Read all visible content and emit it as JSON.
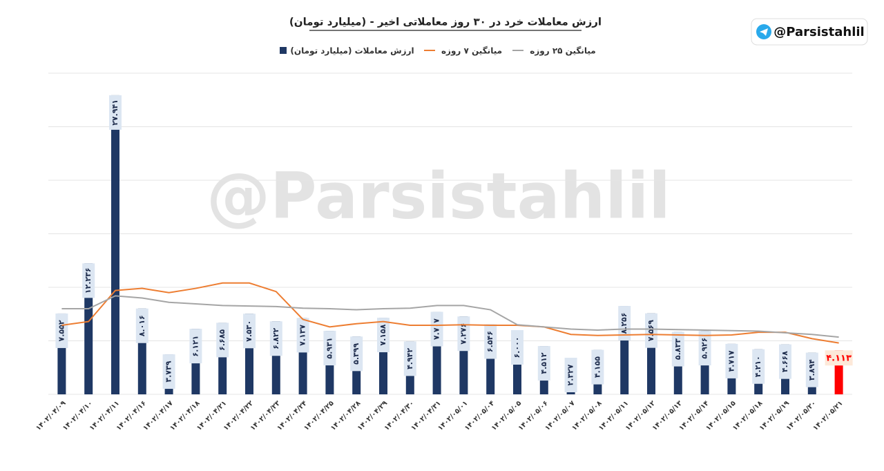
{
  "chart_data": {
    "type": "bar",
    "title": "ارزش معاملات خرد در ۳۰ روز معاملاتی اخیر - (میلیارد تومان)",
    "categories": [
      "۱۴۰۲/۰۴/۰۹",
      "۱۴۰۲/۰۴/۱۰",
      "۱۴۰۲/۰۴/۱۱",
      "۱۴۰۲/۰۴/۱۶",
      "۱۴۰۲/۰۴/۱۷",
      "۱۴۰۲/۰۴/۱۸",
      "۱۴۰۲/۰۴/۲۱",
      "۱۴۰۲/۰۴/۲۲",
      "۱۴۰۲/۰۴/۲۳",
      "۱۴۰۲/۰۴/۲۴",
      "۱۴۰۲/۰۴/۲۵",
      "۱۴۰۲/۰۴/۲۸",
      "۱۴۰۲/۰۴/۲۹",
      "۱۴۰۲/۰۴/۳۰",
      "۱۴۰۲/۰۴/۳۱",
      "۱۴۰۲/۰۵/۰۱",
      "۱۴۰۲/۰۵/۰۴",
      "۱۴۰۲/۰۵/۰۵",
      "۱۴۰۲/۰۵/۰۶",
      "۱۴۰۲/۰۵/۰۷",
      "۱۴۰۲/۰۵/۰۸",
      "۱۴۰۲/۰۵/۱۱",
      "۱۴۰۲/۰۵/۱۲",
      "۱۴۰۲/۰۵/۱۳",
      "۱۴۰۲/۰۵/۱۴",
      "۱۴۰۲/۰۵/۱۵",
      "۱۴۰۲/۰۵/۱۸",
      "۱۴۰۲/۰۵/۱۹",
      "۱۴۰۲/۰۵/۲۰",
      "۱۴۰۲/۰۵/۲۱"
    ],
    "series": [
      {
        "name": "ارزش معاملات (میلیارد تومان)",
        "type": "bar",
        "color": "#1f3864",
        "colors": [
          "#1f3864",
          "#1f3864",
          "#1f3864",
          "#1f3864",
          "#1f3864",
          "#1f3864",
          "#1f3864",
          "#1f3864",
          "#1f3864",
          "#1f3864",
          "#1f3864",
          "#1f3864",
          "#1f3864",
          "#1f3864",
          "#1f3864",
          "#1f3864",
          "#1f3864",
          "#1f3864",
          "#1f3864",
          "#1f3864",
          "#1f3864",
          "#1f3864",
          "#1f3864",
          "#1f3864",
          "#1f3864",
          "#1f3864",
          "#1f3864",
          "#1f3864",
          "#1f3864",
          "#ff0000"
        ],
        "values": [
          7.552,
          12.236,
          27.941,
          8.016,
          3.739,
          6.121,
          6.685,
          7.53,
          6.822,
          7.137,
          5.931,
          5.399,
          7.158,
          4.942,
          7.707,
          7.276,
          6.546,
          6.0,
          4.512,
          2.327,
          4.155,
          8.256,
          7.569,
          5.833,
          5.926,
          4.717,
          4.21,
          4.668,
          3.894,
          4.113
        ],
        "value_labels": [
          "۷.۵۵۲",
          "۱۲.۲۳۶",
          "۲۷.۹۴۱",
          "۸.۰۱۶",
          "۳.۷۳۹",
          "۶.۱۲۱",
          "۶.۶۸۵",
          "۷.۵۳۰",
          "۶.۸۲۲",
          "۷.۱۳۷",
          "۵.۹۳۱",
          "۵.۳۹۹",
          "۷.۱۵۸",
          "۴.۹۴۲",
          "۷.۷۰۷",
          "۷.۲۷۶",
          "۶.۵۴۶",
          "۶.۰۰۰",
          "۴.۵۱۲",
          "۲.۳۲۷",
          "۴.۱۵۵",
          "۸.۲۵۶",
          "۷.۵۶۹",
          "۵.۸۳۳",
          "۵.۹۲۶",
          "۴.۷۱۷",
          "۴.۲۱۰",
          "۴.۶۶۸",
          "۳.۸۹۴",
          "۴.۱۱۳"
        ]
      },
      {
        "name": "میانگین ۷ روزه",
        "type": "line",
        "color": "#ed7d31",
        "values": [
          6.45,
          6.8,
          9.7,
          9.9,
          9.5,
          9.9,
          10.4,
          10.4,
          9.6,
          7.0,
          6.3,
          6.6,
          6.8,
          6.45,
          6.45,
          6.5,
          6.45,
          6.45,
          6.3,
          5.6,
          5.5,
          5.55,
          5.6,
          5.55,
          5.5,
          5.55,
          5.8,
          5.8,
          5.2,
          4.8
        ]
      },
      {
        "name": "میانگین ۲۵ روزه",
        "type": "line",
        "color": "#a5a5a5",
        "values": [
          8.0,
          8.0,
          9.2,
          9.0,
          8.6,
          8.45,
          8.3,
          8.25,
          8.2,
          8.05,
          8.0,
          7.9,
          8.0,
          8.05,
          8.3,
          8.3,
          7.9,
          6.5,
          6.3,
          6.1,
          6.0,
          6.1,
          6.1,
          6.05,
          6.0,
          5.95,
          5.9,
          5.75,
          5.6,
          5.35
        ]
      }
    ],
    "ylim": [
      0,
      30
    ],
    "yticks": [
      0,
      5,
      10,
      15,
      20,
      25,
      30
    ],
    "grid": true
  },
  "watermark": "@Parsistahlil",
  "badge": "@Parsistahlil"
}
